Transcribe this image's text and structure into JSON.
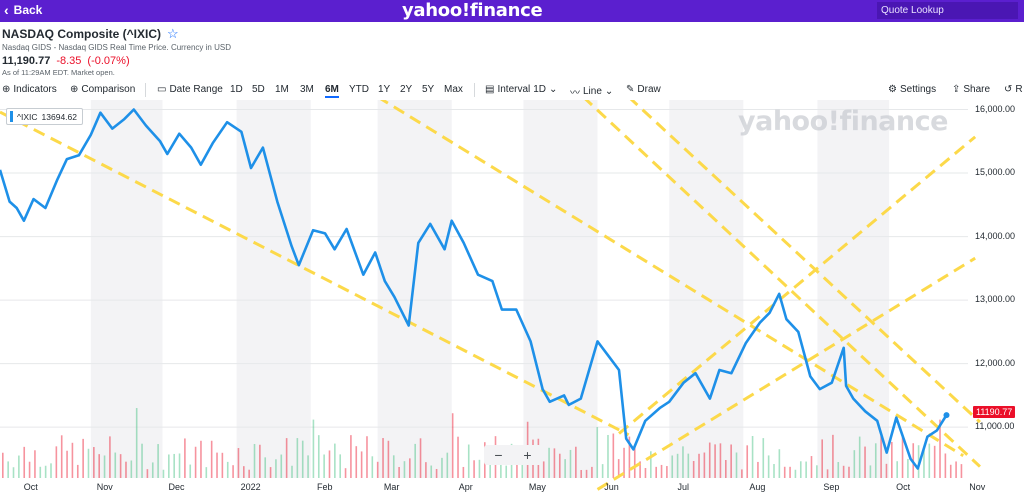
{
  "topbar": {
    "back_label": "Back",
    "logo": "yahoo!finance",
    "search_placeholder": "Quote Lookup"
  },
  "quote": {
    "title": "NASDAQ Composite (^IXIC)",
    "subtitle": "Nasdaq GIDS - Nasdaq GIDS Real Time Price. Currency in USD",
    "price": "11,190.77",
    "change": "-8.35",
    "change_pct": "(-0.07%)",
    "as_of": "As of 11:29AM EDT. Market open."
  },
  "toolbar": {
    "indicators": "Indicators",
    "comparison": "Comparison",
    "date_range": "Date Range",
    "ranges": [
      "1D",
      "5D",
      "1M",
      "3M",
      "6M",
      "YTD",
      "1Y",
      "2Y",
      "5Y",
      "Max"
    ],
    "active_range": "6M",
    "interval": "Interval",
    "interval_value": "1D",
    "line": "Line",
    "draw": "Draw",
    "settings": "Settings",
    "share": "Share",
    "reset": "R"
  },
  "legend": {
    "symbol": "^IXIC",
    "value": "13694.62"
  },
  "watermark": "yahoo!finance",
  "zoom": {
    "minus": "−",
    "plus": "+"
  },
  "last_price_label": "11190.77",
  "colors": {
    "brand": "#5b1fcf",
    "line": "#1e90e8",
    "trend": "#fcd94a",
    "down": "#eb0f29",
    "up": "#3fbf7f"
  },
  "chart_data": {
    "type": "line",
    "title": "",
    "xlabel": "",
    "ylabel": "",
    "ylim": [
      10200,
      16150
    ],
    "y_ticks": [
      11000,
      12000,
      13000,
      14000,
      15000,
      16000
    ],
    "y_tick_labels": [
      "11,000.00",
      "12,000.00",
      "13,000.00",
      "14,000.00",
      "15,000.00",
      "16,000.00"
    ],
    "x_tick_labels": [
      "Oct",
      "Nov",
      "Dec",
      "2022",
      "Feb",
      "Mar",
      "Apr",
      "May",
      "Jun",
      "Jul",
      "Aug",
      "Sep",
      "Oct",
      "Nov"
    ],
    "x_range": [
      "2021-09-24",
      "2022-11-03"
    ],
    "x_ticks": [
      "2021-10-01",
      "2021-11-01",
      "2021-12-01",
      "2022-01-01",
      "2022-02-01",
      "2022-03-01",
      "2022-04-01",
      "2022-05-01",
      "2022-06-01",
      "2022-07-01",
      "2022-08-01",
      "2022-09-01",
      "2022-10-01",
      "2022-11-01"
    ],
    "grid": true,
    "legend_position": "top-left",
    "series": [
      {
        "name": "^IXIC",
        "x": [
          "2021-09-24",
          "2021-09-28",
          "2021-10-01",
          "2021-10-04",
          "2021-10-08",
          "2021-10-13",
          "2021-10-18",
          "2021-10-22",
          "2021-10-27",
          "2021-11-01",
          "2021-11-05",
          "2021-11-10",
          "2021-11-15",
          "2021-11-19",
          "2021-11-24",
          "2021-11-30",
          "2021-12-03",
          "2021-12-08",
          "2021-12-13",
          "2021-12-17",
          "2021-12-22",
          "2021-12-28",
          "2022-01-03",
          "2022-01-07",
          "2022-01-12",
          "2022-01-18",
          "2022-01-24",
          "2022-01-27",
          "2022-02-02",
          "2022-02-07",
          "2022-02-11",
          "2022-02-16",
          "2022-02-23",
          "2022-02-28",
          "2022-03-04",
          "2022-03-08",
          "2022-03-14",
          "2022-03-18",
          "2022-03-23",
          "2022-03-29",
          "2022-04-01",
          "2022-04-06",
          "2022-04-12",
          "2022-04-18",
          "2022-04-22",
          "2022-04-28",
          "2022-05-04",
          "2022-05-09",
          "2022-05-12",
          "2022-05-18",
          "2022-05-20",
          "2022-05-25",
          "2022-06-01",
          "2022-06-06",
          "2022-06-10",
          "2022-06-13",
          "2022-06-16",
          "2022-06-21",
          "2022-06-27",
          "2022-07-01",
          "2022-07-07",
          "2022-07-12",
          "2022-07-18",
          "2022-07-22",
          "2022-07-27",
          "2022-08-02",
          "2022-08-08",
          "2022-08-12",
          "2022-08-16",
          "2022-08-19",
          "2022-08-24",
          "2022-08-29",
          "2022-09-02",
          "2022-09-07",
          "2022-09-12",
          "2022-09-13",
          "2022-09-16",
          "2022-09-21",
          "2022-09-26",
          "2022-09-30",
          "2022-10-04",
          "2022-10-10",
          "2022-10-13",
          "2022-10-17",
          "2022-10-21",
          "2022-10-25"
        ],
        "values": [
          15050,
          14550,
          14450,
          14250,
          14590,
          14450,
          14900,
          15220,
          15280,
          15600,
          15950,
          15700,
          15850,
          16000,
          15750,
          15500,
          15300,
          15620,
          15400,
          15130,
          15470,
          15800,
          15650,
          15080,
          15400,
          14550,
          13850,
          13550,
          14100,
          14050,
          13800,
          14120,
          13400,
          13750,
          13300,
          13050,
          12600,
          13900,
          14200,
          13800,
          14250,
          13900,
          13400,
          13300,
          12850,
          12850,
          12350,
          11600,
          11400,
          11500,
          11350,
          11450,
          12350,
          12100,
          11900,
          10820,
          10650,
          11100,
          11300,
          11400,
          11700,
          11850,
          11450,
          11900,
          11850,
          12320,
          12650,
          12800,
          13100,
          12700,
          12500,
          11800,
          11600,
          11700,
          12250,
          11650,
          11450,
          11250,
          11100,
          10600,
          11150,
          10500,
          10350,
          10850,
          10950,
          11190
        ]
      }
    ],
    "trend_lines": [
      {
        "from": [
          "2021-09-24",
          15960
        ],
        "to": [
          "2022-06-14",
          10880
        ]
      },
      {
        "from": [
          "2022-03-01",
          16200
        ],
        "to": [
          "2022-11-01",
          10550
        ]
      },
      {
        "from": [
          "2022-05-26",
          16200
        ],
        "to": [
          "2022-11-08",
          10380
        ]
      },
      {
        "from": [
          "2022-06-14",
          16200
        ],
        "to": [
          "2022-11-08",
          11080
        ]
      },
      {
        "from": [
          "2022-06-10",
          10900
        ],
        "to": [
          "2022-11-06",
          15570
        ]
      },
      {
        "from": [
          "2022-06-01",
          10020
        ],
        "to": [
          "2022-11-06",
          13660
        ]
      }
    ],
    "volume": {
      "count": 180,
      "min": 8,
      "max": 72,
      "colors_note": "mixed"
    }
  }
}
